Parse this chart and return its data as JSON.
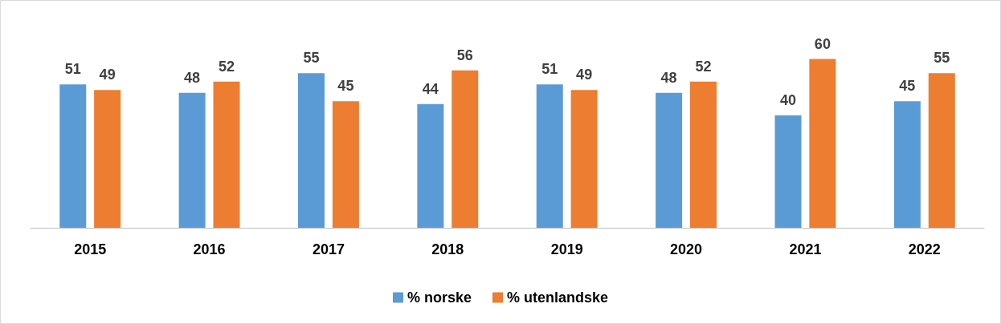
{
  "chart_data": {
    "type": "bar",
    "categories": [
      "2015",
      "2016",
      "2017",
      "2018",
      "2019",
      "2020",
      "2021",
      "2022"
    ],
    "series": [
      {
        "name": "% norske",
        "color": "#5b9bd5",
        "values": [
          51,
          48,
          55,
          44,
          51,
          48,
          40,
          45
        ]
      },
      {
        "name": "% utenlandske",
        "color": "#ed7d31",
        "values": [
          49,
          52,
          45,
          56,
          49,
          52,
          60,
          55
        ]
      }
    ],
    "data_labels": true,
    "grid": false,
    "legend": "bottom"
  }
}
